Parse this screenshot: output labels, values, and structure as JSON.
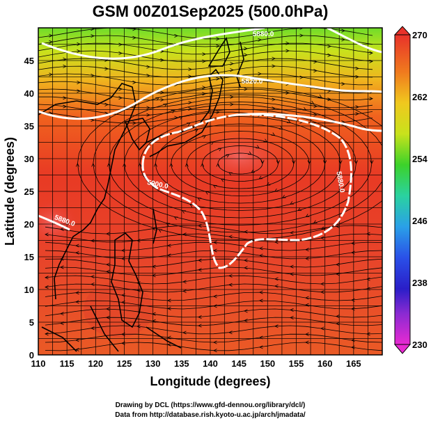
{
  "title": "GSM 00Z01Sep2025 (500.0hPa)",
  "x_axis": {
    "label": "Longitude (degrees)",
    "ticks": [
      "110",
      "115",
      "120",
      "125",
      "130",
      "135",
      "140",
      "145",
      "150",
      "155",
      "160",
      "165"
    ],
    "range": [
      110,
      170
    ]
  },
  "y_axis": {
    "label": "Latitude  (degrees)",
    "ticks": [
      "0",
      "5",
      "10",
      "15",
      "20",
      "25",
      "30",
      "35",
      "40",
      "45"
    ],
    "range": [
      0,
      50
    ]
  },
  "colorbar": {
    "ticks": [
      "270",
      "262",
      "254",
      "246",
      "238",
      "230"
    ],
    "range": [
      230,
      270
    ]
  },
  "contour_labels": [
    "5880.0",
    "5820.0",
    "5900.0",
    "5880.0",
    "5880.0"
  ],
  "credits": {
    "line1": "Drawing by DCL (https://www.gfd-dennou.org/library/dcl/)",
    "line2": "Data from http://database.rish.kyoto-u.ac.jp/arch/jmadata/"
  },
  "colors": {
    "warm_core": "#e8322a",
    "orange": "#f07a1e",
    "yellow": "#e8c81e",
    "green": "#5ad22a",
    "contour": "#ffffff"
  }
}
